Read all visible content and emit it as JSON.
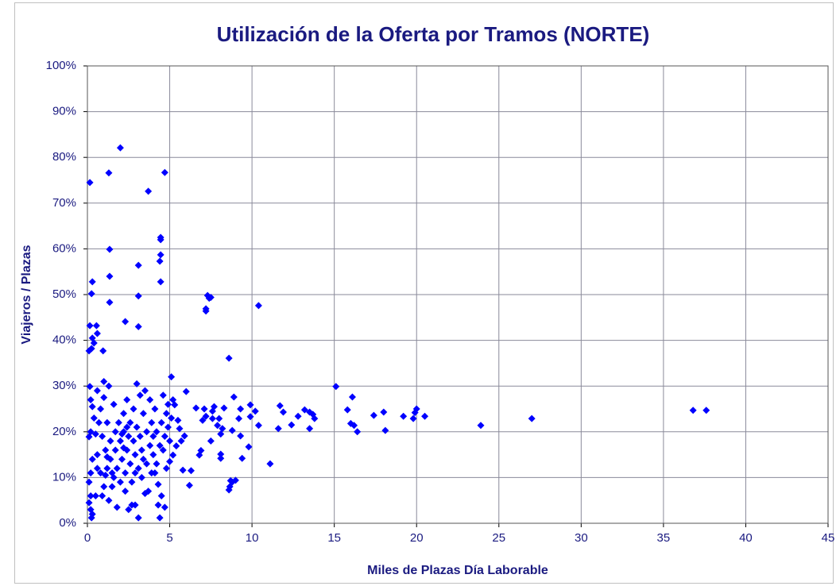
{
  "chart_data": {
    "type": "scatter",
    "title": "Utilización de la Oferta por Tramos (NORTE)",
    "xlabel": "Miles de Plazas Día Laborable",
    "ylabel": "Viajeros / Plazas",
    "color": "#0000ff",
    "grid": true,
    "xlim": [
      0,
      45
    ],
    "xticks": [
      0,
      5,
      10,
      15,
      20,
      25,
      30,
      35,
      40,
      45
    ],
    "ylim": [
      0,
      100
    ],
    "yticks": [
      {
        "value": 0,
        "label": "0%"
      },
      {
        "value": 10,
        "label": "10%"
      },
      {
        "value": 20,
        "label": "20%"
      },
      {
        "value": 30,
        "label": "30%"
      },
      {
        "value": 40,
        "label": "40%"
      },
      {
        "value": 50,
        "label": "50%"
      },
      {
        "value": 60,
        "label": "60%"
      },
      {
        "value": 70,
        "label": "70%"
      },
      {
        "value": 80,
        "label": "80%"
      },
      {
        "value": 90,
        "label": "90%"
      },
      {
        "value": 100,
        "label": "100%"
      }
    ],
    "x": [
      0.15,
      2.0,
      1.3,
      4.7,
      3.7,
      1.35,
      4.45,
      4.45,
      4.45,
      4.4,
      3.1,
      4.45,
      0.3,
      1.35,
      0.25,
      3.1,
      1.35,
      7.3,
      7.4,
      7.5,
      7.2,
      7.2,
      10.4,
      2.3,
      3.1,
      0.15,
      0.55,
      0.6,
      0.3,
      0.4,
      0.1,
      0.25,
      0.95,
      8.6,
      5.1,
      15.1,
      0.15,
      27.0,
      23.9,
      36.8,
      37.6,
      20.0,
      19.9,
      20.5,
      19.2,
      19.8,
      18.0,
      18.1,
      17.4,
      16.1,
      15.8,
      16.0,
      16.2,
      16.4,
      13.5,
      13.7,
      13.8,
      13.5,
      13.2,
      12.8,
      12.4,
      11.9,
      11.7,
      11.6,
      11.1,
      10.4,
      10.2,
      9.9,
      9.9,
      9.8,
      9.3,
      9.3,
      9.2,
      8.9,
      8.8,
      9.4,
      9.0,
      8.7,
      8.65,
      8.6,
      8.8,
      8.3,
      8.2,
      8.0,
      7.9,
      8.1,
      8.1,
      8.1,
      7.7,
      7.6,
      7.6,
      7.5,
      7.2,
      7.1,
      7.0,
      6.9,
      6.8,
      6.6,
      6.3,
      6.2,
      5.8,
      5.9,
      5.7,
      6.0,
      5.6,
      5.5,
      5.3,
      5.2,
      5.4,
      0.1,
      0.2,
      0.3,
      0.2,
      0.4,
      0.5,
      0.3,
      0.2,
      0.1,
      0.2,
      0.1,
      0.2,
      0.3,
      0.25,
      0.5,
      0.6,
      0.6,
      0.7,
      0.8,
      0.6,
      0.9,
      1.0,
      1.0,
      1.1,
      1.1,
      1.0,
      0.9,
      1.2,
      1.2,
      1.3,
      1.4,
      1.4,
      1.5,
      1.5,
      1.6,
      1.7,
      1.7,
      1.8,
      1.8,
      1.9,
      2.0,
      2.0,
      2.1,
      2.2,
      2.2,
      2.3,
      2.3,
      2.4,
      2.4,
      2.5,
      2.5,
      2.6,
      2.6,
      2.7,
      2.7,
      2.8,
      2.8,
      2.9,
      2.9,
      3.0,
      3.0,
      3.1,
      3.1,
      3.2,
      3.2,
      3.3,
      3.3,
      3.4,
      3.5,
      3.5,
      3.6,
      3.6,
      3.7,
      3.8,
      3.8,
      3.9,
      3.9,
      4.0,
      4.0,
      4.1,
      4.2,
      4.2,
      4.3,
      4.3,
      4.4,
      4.4,
      4.5,
      4.5,
      4.6,
      4.6,
      4.7,
      4.7,
      4.8,
      4.8,
      4.9,
      4.9,
      5.0,
      5.0,
      5.1,
      5.2,
      1.2,
      2.1,
      2.4,
      1.6,
      3.4,
      0.8,
      2.9,
      4.1,
      1.3,
      2.2
    ],
    "values": [
      74.5,
      82.1,
      76.6,
      76.7,
      72.6,
      59.9,
      62.5,
      62.0,
      58.7,
      57.3,
      56.4,
      52.8,
      52.8,
      54.0,
      50.2,
      49.7,
      48.3,
      49.8,
      49.2,
      49.4,
      46.9,
      46.4,
      47.6,
      44.1,
      43.0,
      43.2,
      43.2,
      41.5,
      40.5,
      39.4,
      37.7,
      38.2,
      37.7,
      36.1,
      32.0,
      29.9,
      29.9,
      22.9,
      21.4,
      24.7,
      24.7,
      25.0,
      24.2,
      23.4,
      23.4,
      22.9,
      24.3,
      20.3,
      23.6,
      27.6,
      24.8,
      21.8,
      21.4,
      20.0,
      24.3,
      23.8,
      22.9,
      20.7,
      24.8,
      23.4,
      21.5,
      24.3,
      25.7,
      20.7,
      13.0,
      21.4,
      24.5,
      25.9,
      23.3,
      16.7,
      25.0,
      19.1,
      22.9,
      27.6,
      20.3,
      14.2,
      9.4,
      9.3,
      8.0,
      7.3,
      9.0,
      25.2,
      20.7,
      22.9,
      21.4,
      19.5,
      15.1,
      14.2,
      25.5,
      24.5,
      22.9,
      18.0,
      23.4,
      25.0,
      22.5,
      15.9,
      14.9,
      25.2,
      11.5,
      8.3,
      11.6,
      19.1,
      18.0,
      28.8,
      20.7,
      22.5,
      25.9,
      14.9,
      16.9,
      18.9,
      20,
      25.5,
      27,
      23,
      19.5,
      14,
      11,
      9,
      6,
      4.5,
      3,
      2,
      1.2,
      6,
      12,
      15,
      22,
      25,
      29,
      19,
      27.5,
      31,
      16,
      10.5,
      8,
      6,
      12,
      22,
      30,
      18,
      14,
      11,
      8,
      26,
      20,
      16,
      12,
      3.5,
      22,
      18,
      9,
      14,
      24,
      20,
      11,
      7,
      27,
      16,
      19,
      3,
      22,
      13,
      9,
      4,
      18,
      25,
      15,
      11,
      21,
      30.5,
      12,
      1.2,
      28,
      19,
      16,
      10,
      24,
      29,
      6.5,
      20,
      13,
      7,
      27,
      17,
      22,
      11,
      19,
      15,
      25,
      13,
      20,
      8.5,
      4,
      1.2,
      17,
      22,
      6,
      28,
      16,
      19,
      3.5,
      24,
      12,
      26,
      21,
      18,
      13.5,
      23,
      27,
      14.5,
      19.5,
      21,
      10,
      14,
      11,
      4,
      11,
      5,
      16.5
    ]
  }
}
